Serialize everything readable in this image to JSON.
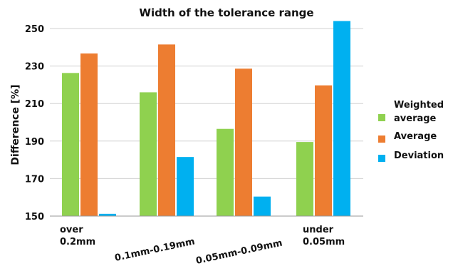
{
  "chart_data": {
    "type": "bar",
    "title": "Width of the tolerance range",
    "xlabel": "",
    "ylabel": "Difference [%]",
    "ylim": [
      150,
      250
    ],
    "yticks": [
      150,
      170,
      190,
      210,
      230,
      250
    ],
    "grid": true,
    "legend_position": "right",
    "categories": [
      "over 0.2mm",
      "0.1mm-0.19mm",
      "0.05mm-0.09mm",
      "under 0.05mm"
    ],
    "series": [
      {
        "name": "Weighted average",
        "color": "#8fd14f",
        "values": [
          226.3,
          216.0,
          196.5,
          189.5
        ]
      },
      {
        "name": "Average",
        "color": "#ed7d31",
        "values": [
          236.7,
          241.5,
          228.6,
          219.7
        ]
      },
      {
        "name": "Deviation",
        "color": "#00b0f0",
        "values": [
          151.2,
          181.5,
          160.4,
          254.0
        ]
      }
    ]
  }
}
